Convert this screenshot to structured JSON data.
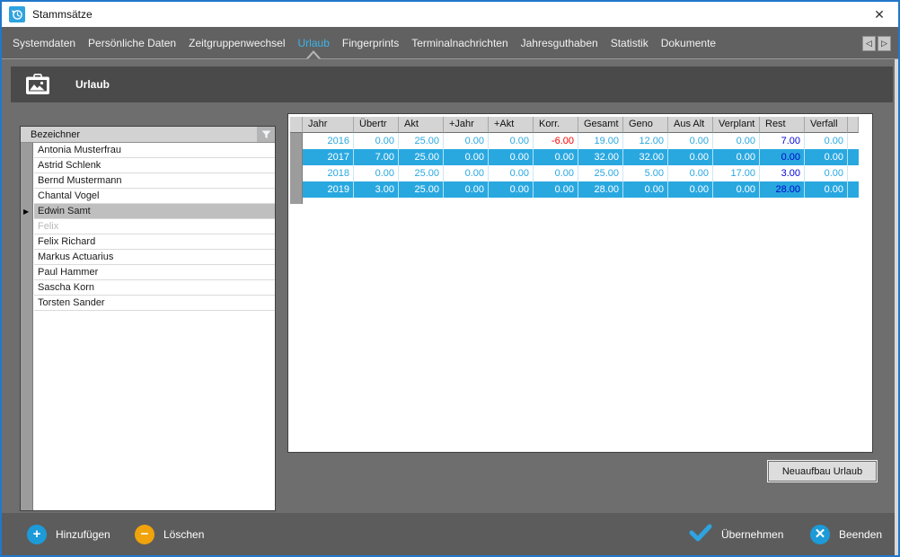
{
  "window": {
    "title": "Stammsätze"
  },
  "tabs": {
    "items": [
      {
        "label": "Systemdaten"
      },
      {
        "label": "Persönliche Daten"
      },
      {
        "label": "Zeitgruppenwechsel"
      },
      {
        "label": "Urlaub"
      },
      {
        "label": "Fingerprints"
      },
      {
        "label": "Terminalnachrichten"
      },
      {
        "label": "Jahresguthaben"
      },
      {
        "label": "Statistik"
      },
      {
        "label": "Dokumente"
      }
    ],
    "active": "Urlaub"
  },
  "section": {
    "title": "Urlaub"
  },
  "employee_list": {
    "header": "Bezeichner",
    "items": [
      {
        "name": "Antonia Musterfrau",
        "state": "normal"
      },
      {
        "name": "Astrid Schlenk",
        "state": "normal"
      },
      {
        "name": "Bernd Mustermann",
        "state": "normal"
      },
      {
        "name": "Chantal Vogel",
        "state": "normal"
      },
      {
        "name": "Edwin Samt",
        "state": "selected"
      },
      {
        "name": "Felix",
        "state": "disabled"
      },
      {
        "name": "Felix Richard",
        "state": "normal"
      },
      {
        "name": "Markus Actuarius",
        "state": "normal"
      },
      {
        "name": "Paul Hammer",
        "state": "normal"
      },
      {
        "name": "Sascha Korn",
        "state": "normal"
      },
      {
        "name": "Torsten Sander",
        "state": "normal"
      }
    ]
  },
  "vacation_grid": {
    "columns": [
      "Jahr",
      "Übertr",
      "Akt",
      "+Jahr",
      "+Akt",
      "Korr.",
      "Gesamt",
      "Geno",
      "Aus Alt",
      "Verplant",
      "Rest",
      "Verfall"
    ],
    "rows": [
      {
        "highlight": false,
        "cells": [
          "2016",
          "0.00",
          "25.00",
          "0.00",
          "0.00",
          "-6.00",
          "19.00",
          "12.00",
          "0.00",
          "0.00",
          "7.00",
          "0.00"
        ]
      },
      {
        "highlight": true,
        "cells": [
          "2017",
          "7.00",
          "25.00",
          "0.00",
          "0.00",
          "0.00",
          "32.00",
          "32.00",
          "0.00",
          "0.00",
          "0.00",
          "0.00"
        ]
      },
      {
        "highlight": false,
        "cells": [
          "2018",
          "0.00",
          "25.00",
          "0.00",
          "0.00",
          "0.00",
          "25.00",
          "5.00",
          "0.00",
          "17.00",
          "3.00",
          "0.00"
        ]
      },
      {
        "highlight": true,
        "cells": [
          "2019",
          "3.00",
          "25.00",
          "0.00",
          "0.00",
          "0.00",
          "28.00",
          "0.00",
          "0.00",
          "0.00",
          "28.00",
          "0.00"
        ]
      }
    ]
  },
  "buttons": {
    "rebuild": "Neuaufbau Urlaub",
    "add": "Hinzufügen",
    "delete": "Löschen",
    "apply": "Übernehmen",
    "quit": "Beenden"
  },
  "icons": {
    "app_icon": "history-clock",
    "section_icon": "vacation-badge",
    "filter_icon": "funnel",
    "close_glyph": "✕",
    "prev_glyph": "◁",
    "next_glyph": "▷",
    "marker_glyph": "▶",
    "add_glyph": "+",
    "delete_glyph": "−",
    "quit_glyph": "✕"
  },
  "colors": {
    "accent": "#29a8e0",
    "negative": "#ff0000",
    "rest_value": "#0004d2",
    "delete_orange": "#f0a30a",
    "window_border": "#2277cc",
    "selected_list_row": "#bfbfbf"
  }
}
